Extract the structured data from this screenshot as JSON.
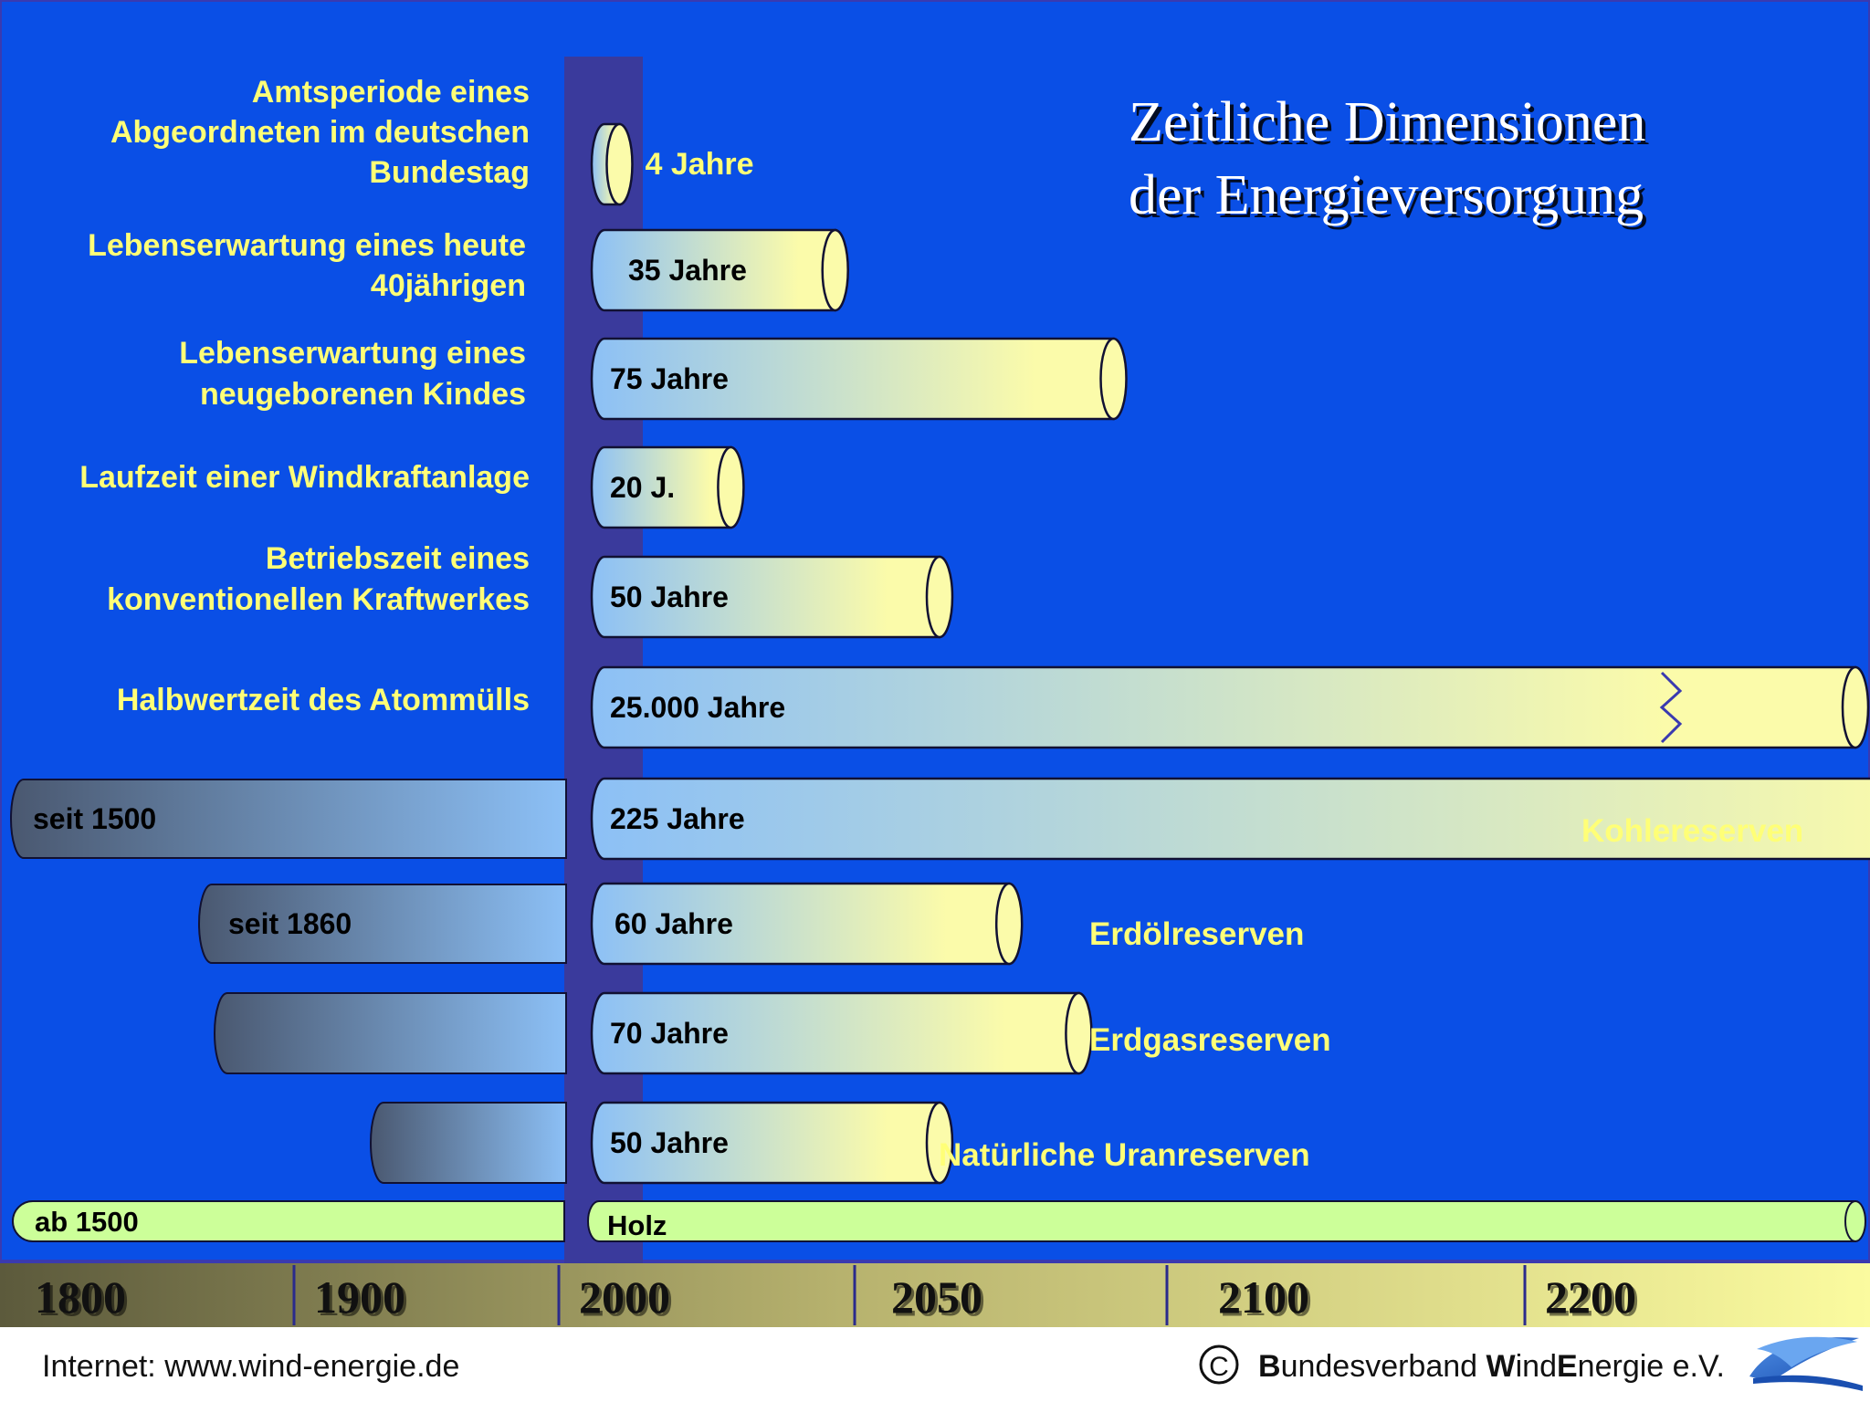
{
  "title": {
    "line1": "Zeitliche Dimensionen",
    "line2": "der Energieversorgung"
  },
  "footer": {
    "internet": "Internet: www.wind-energie.de",
    "copyright_symbol": "C",
    "org_parts": [
      "B",
      "undesverband ",
      "W",
      "ind",
      "E",
      "nergie e.V."
    ]
  },
  "colors": {
    "background": "#0a4fe6",
    "column": "#3a3a9c",
    "label_yellow": "#ffff77",
    "bar_blue": "#8cc0f6",
    "bar_yellow": "#fbfbaa",
    "bar_dark": "#4a5870",
    "wood_green": "#ccff99",
    "axis_dark": "#5c5a3c",
    "axis_light": "#fbfb9f"
  },
  "chart_data": {
    "type": "bar",
    "orientation": "horizontal",
    "axis_ticks": [
      "1800",
      "1900",
      "2000",
      "2050",
      "2100",
      "2200"
    ],
    "rows": [
      {
        "label": "Amtsperiode eines Abgeordneten im deutschen Bundestag",
        "label_lines": [
          "Amtsperiode eines",
          "Abgeordneten im deutschen",
          "Bundestag"
        ],
        "years": 4,
        "value_text": "4 Jahre",
        "value_outside": true
      },
      {
        "label": "Lebenserwartung eines heute 40jährigen",
        "label_lines": [
          "Lebenserwartung eines heute",
          "40jährigen"
        ],
        "years": 35,
        "value_text": "35 Jahre"
      },
      {
        "label": "Lebenserwartung eines neugeborenen Kindes",
        "label_lines": [
          "Lebenserwartung eines",
          "neugeborenen  Kindes"
        ],
        "years": 75,
        "value_text": "75 Jahre"
      },
      {
        "label": "Laufzeit einer Windkraftanlage",
        "label_lines": [
          "Laufzeit  einer Windkraftanlage"
        ],
        "years": 20,
        "value_text": "20 J."
      },
      {
        "label": "Betriebszeit eines konventionellen Kraftwerkes",
        "label_lines": [
          "Betriebszeit eines",
          "konventionellen  Kraftwerkes"
        ],
        "years": 50,
        "value_text": "50 Jahre"
      },
      {
        "label": "Halbwertzeit des Atommülls",
        "label_lines": [
          "Halbwertzeit des Atommülls"
        ],
        "years": 25000,
        "value_text": "25.000 Jahre",
        "axis_break": true
      },
      {
        "label": "Kohlereserven",
        "right_label": "Kohlereserven",
        "years": 225,
        "value_text": "225 Jahre",
        "since_text": "seit 1500",
        "since_year": 1500
      },
      {
        "label": "Erdölreserven",
        "right_label": "Erdölreserven",
        "years": 60,
        "value_text": "60 Jahre",
        "since_text": "seit 1860",
        "since_year": 1860
      },
      {
        "label": "Erdgasreserven",
        "right_label": "Erdgasreserven",
        "years": 70,
        "value_text": "70 Jahre",
        "since_text": ""
      },
      {
        "label": "Natürliche Uranreserven",
        "right_label": "Natürliche Uranreserven",
        "years": 50,
        "value_text": "50 Jahre",
        "since_text": ""
      }
    ],
    "wood": {
      "label": "Holz",
      "since_text": "ab 1500"
    }
  }
}
